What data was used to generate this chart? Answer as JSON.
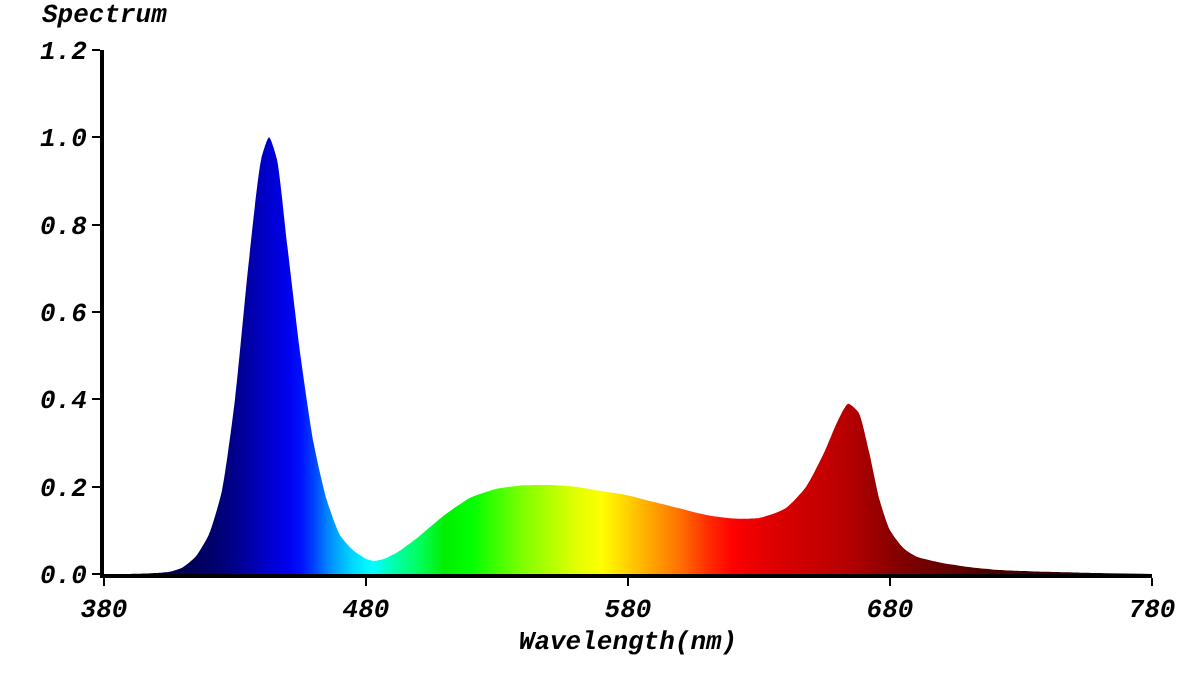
{
  "chart_data": {
    "type": "area",
    "xlabel": "Wavelength(nm)",
    "ylabel": "Spectrum",
    "x": [
      380,
      390,
      400,
      405,
      410,
      415,
      420,
      425,
      430,
      435,
      440,
      443,
      446,
      450,
      455,
      460,
      465,
      470,
      475,
      480,
      483,
      487,
      492,
      500,
      510,
      520,
      530,
      540,
      550,
      560,
      570,
      580,
      590,
      600,
      610,
      620,
      630,
      640,
      648,
      655,
      660,
      664,
      668,
      672,
      676,
      680,
      685,
      690,
      700,
      710,
      720,
      740,
      760,
      780
    ],
    "values": [
      0,
      0,
      0.002,
      0.005,
      0.015,
      0.04,
      0.09,
      0.19,
      0.4,
      0.7,
      0.95,
      1.0,
      0.95,
      0.75,
      0.5,
      0.3,
      0.17,
      0.09,
      0.055,
      0.035,
      0.03,
      0.035,
      0.05,
      0.085,
      0.135,
      0.175,
      0.195,
      0.203,
      0.204,
      0.2,
      0.19,
      0.18,
      0.165,
      0.15,
      0.135,
      0.127,
      0.128,
      0.15,
      0.2,
      0.28,
      0.35,
      0.39,
      0.37,
      0.28,
      0.17,
      0.1,
      0.06,
      0.04,
      0.025,
      0.016,
      0.01,
      0.005,
      0.002,
      0
    ],
    "colors": [
      "#00003a",
      "#00003e",
      "#000046",
      "#00004c",
      "#000054",
      "#00005c",
      "#000068",
      "#000078",
      "#00008c",
      "#0000a4",
      "#0000c0",
      "#0000d0",
      "#0000dc",
      "#0000ee",
      "#0010ff",
      "#0040ff",
      "#0080ff",
      "#00b0ff",
      "#00d8ff",
      "#00f4ff",
      "#00ffff",
      "#00ffd0",
      "#00ffa0",
      "#00ff60",
      "#00f000",
      "#00ff00",
      "#40ff00",
      "#80ff00",
      "#b0ff00",
      "#e0ff00",
      "#ffff00",
      "#ffd000",
      "#ffa000",
      "#ff7000",
      "#ff3000",
      "#ff0000",
      "#e80000",
      "#d80000",
      "#cc0000",
      "#c40000",
      "#bc0000",
      "#b40000",
      "#ac0000",
      "#a00000",
      "#960000",
      "#8c0000",
      "#800000",
      "#780000",
      "#680000",
      "#580000",
      "#4c0000",
      "#380000",
      "#280000",
      "#200000"
    ],
    "xlim": [
      380,
      780
    ],
    "xticks": [
      380,
      480,
      580,
      680,
      780
    ],
    "ylim": [
      0,
      1.2
    ],
    "yticks": [
      {
        "value": 0,
        "label": "0.0"
      },
      {
        "value": 0.2,
        "label": "0.2"
      },
      {
        "value": 0.4,
        "label": "0.4"
      },
      {
        "value": 0.6,
        "label": "0.6"
      },
      {
        "value": 0.8,
        "label": "0.8"
      },
      {
        "value": 1,
        "label": "1.0"
      },
      {
        "value": 1.2,
        "label": "1.2"
      }
    ],
    "grid": false
  }
}
